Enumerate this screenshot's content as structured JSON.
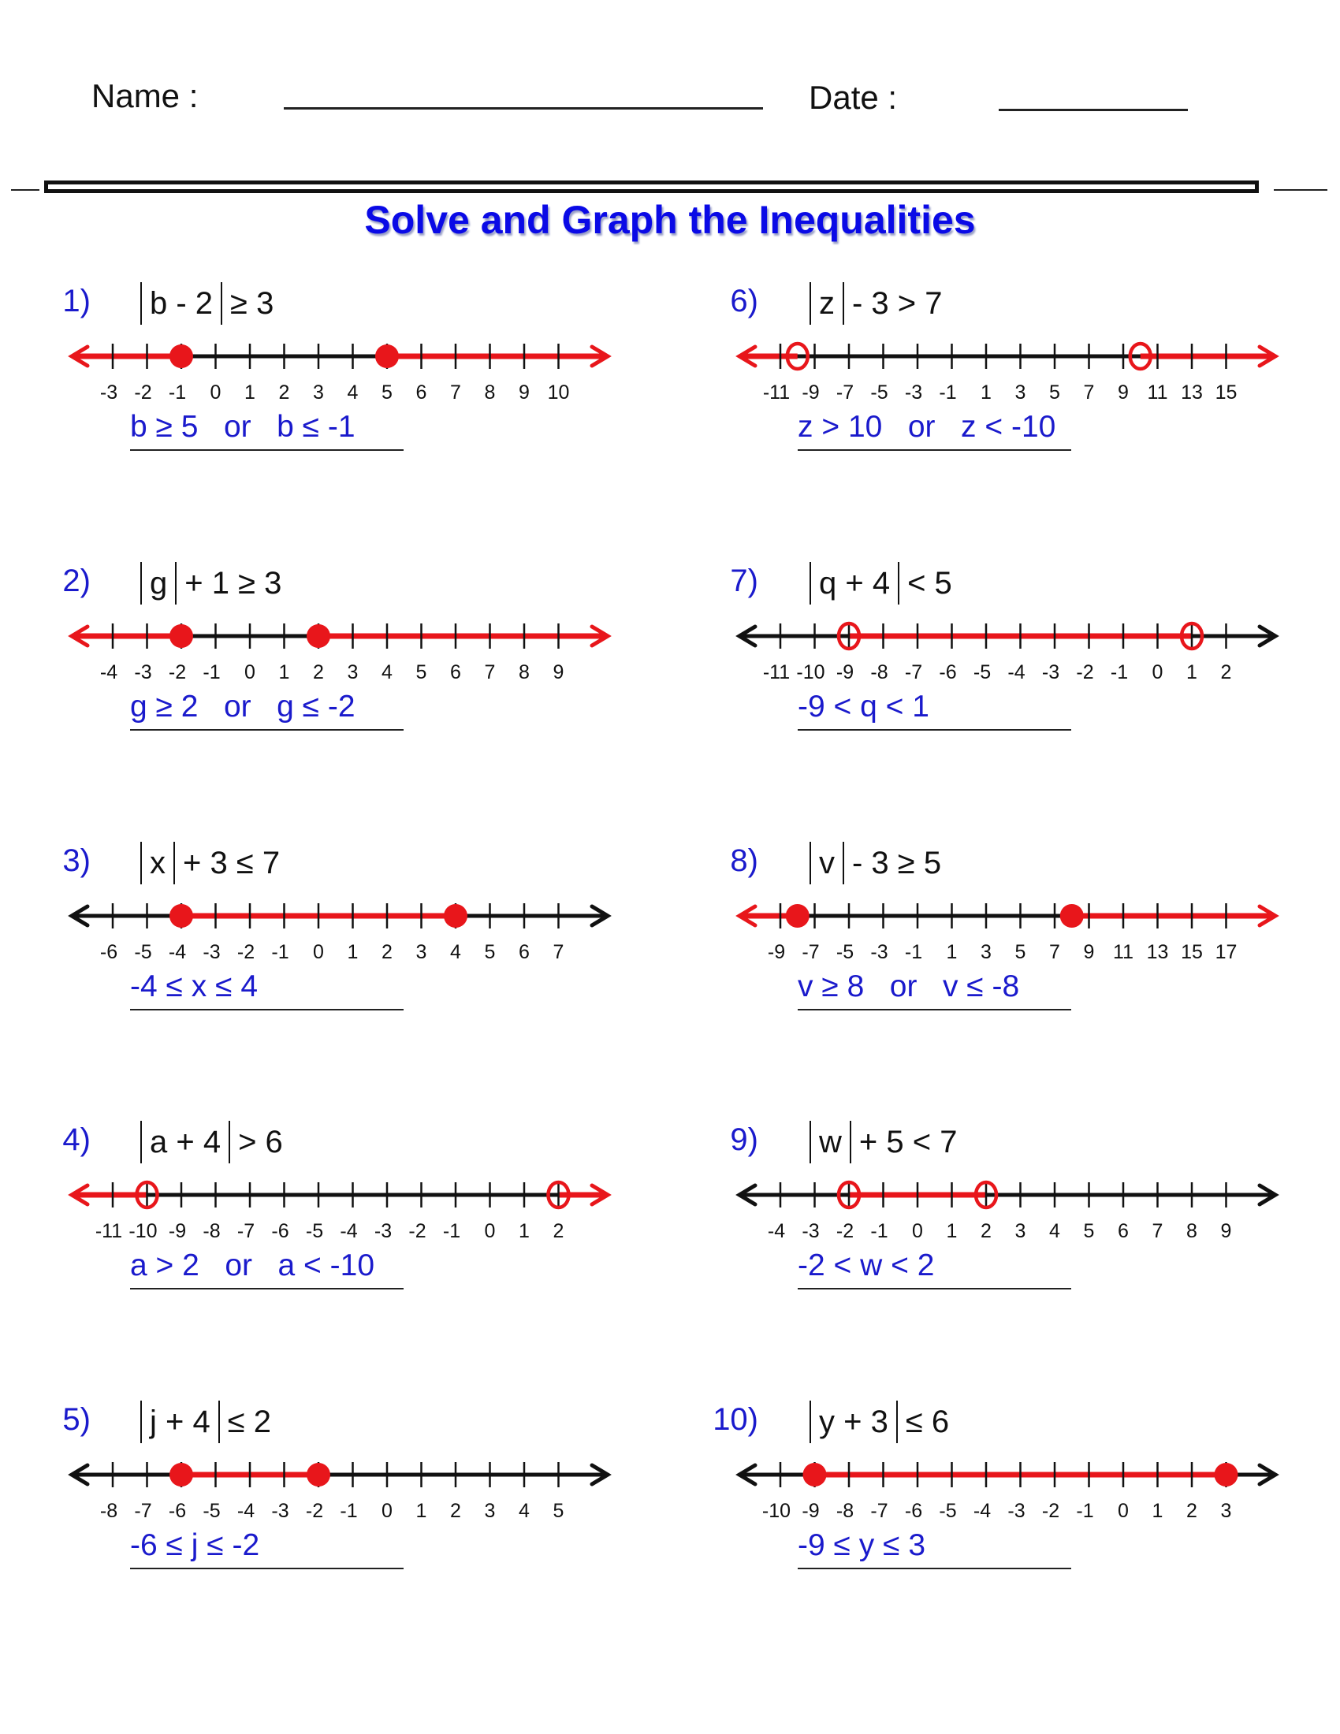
{
  "header": {
    "name_label": "Name :",
    "date_label": "Date :"
  },
  "title": "Solve and Graph the Inequalities",
  "colors": {
    "accent_blue": "#1a1acc",
    "title_blue": "#0a0ae6",
    "graph_red": "#e8161b",
    "axis_black": "#111111"
  },
  "problems": [
    {
      "num": "1)",
      "inside": "b - 2",
      "after": "≥ 3",
      "answer": "b ≥ 5   or   b ≤ -1",
      "graph": {
        "min": -3,
        "max": 10,
        "step": 1,
        "points": [
          {
            "value": -1,
            "closed": true
          },
          {
            "value": 5,
            "closed": true
          }
        ],
        "shade": "outside"
      }
    },
    {
      "num": "2)",
      "inside": "g",
      "after": "+ 1 ≥ 3",
      "answer": "g ≥ 2   or   g ≤ -2",
      "graph": {
        "min": -4,
        "max": 9,
        "step": 1,
        "points": [
          {
            "value": -2,
            "closed": true
          },
          {
            "value": 2,
            "closed": true
          }
        ],
        "shade": "outside"
      }
    },
    {
      "num": "3)",
      "inside": "x",
      "after": "+ 3 ≤ 7",
      "answer": "-4 ≤ x ≤ 4",
      "graph": {
        "min": -6,
        "max": 7,
        "step": 1,
        "points": [
          {
            "value": -4,
            "closed": true
          },
          {
            "value": 4,
            "closed": true
          }
        ],
        "shade": "between"
      }
    },
    {
      "num": "4)",
      "inside": "a + 4",
      "after": "> 6",
      "answer": "a > 2   or   a < -10",
      "graph": {
        "min": -11,
        "max": 2,
        "step": 1,
        "points": [
          {
            "value": -10,
            "closed": false
          },
          {
            "value": 2,
            "closed": false
          }
        ],
        "shade": "outside"
      }
    },
    {
      "num": "5)",
      "inside": "j + 4",
      "after": "≤ 2",
      "answer": "-6 ≤ j ≤ -2",
      "graph": {
        "min": -8,
        "max": 5,
        "step": 1,
        "points": [
          {
            "value": -6,
            "closed": true
          },
          {
            "value": -2,
            "closed": true
          }
        ],
        "shade": "between"
      }
    },
    {
      "num": "6)",
      "inside": "z",
      "after": "- 3 > 7",
      "answer": "z > 10   or   z < -10",
      "graph": {
        "min": -11,
        "max": 15,
        "step": 2,
        "points": [
          {
            "value": -10,
            "closed": false
          },
          {
            "value": 10,
            "closed": false
          }
        ],
        "shade": "outside"
      }
    },
    {
      "num": "7)",
      "inside": "q + 4",
      "after": "< 5",
      "answer": "-9 < q < 1",
      "graph": {
        "min": -11,
        "max": 2,
        "step": 1,
        "points": [
          {
            "value": -9,
            "closed": false
          },
          {
            "value": 1,
            "closed": false
          }
        ],
        "shade": "between"
      }
    },
    {
      "num": "8)",
      "inside": "v",
      "after": "- 3 ≥ 5",
      "answer": "v ≥ 8   or   v ≤ -8",
      "graph": {
        "min": -9,
        "max": 17,
        "step": 2,
        "points": [
          {
            "value": -8,
            "closed": true
          },
          {
            "value": 8,
            "closed": true
          }
        ],
        "shade": "outside"
      }
    },
    {
      "num": "9)",
      "inside": "w",
      "after": "+ 5 < 7",
      "answer": "-2 < w < 2",
      "graph": {
        "min": -4,
        "max": 9,
        "step": 1,
        "points": [
          {
            "value": -2,
            "closed": false
          },
          {
            "value": 2,
            "closed": false
          }
        ],
        "shade": "between"
      }
    },
    {
      "num": "10)",
      "inside": "y + 3",
      "after": "≤ 6",
      "answer": "-9 ≤ y ≤ 3",
      "graph": {
        "min": -10,
        "max": 3,
        "step": 1,
        "points": [
          {
            "value": -9,
            "closed": true
          },
          {
            "value": 3,
            "closed": true
          }
        ],
        "shade": "between"
      }
    }
  ]
}
